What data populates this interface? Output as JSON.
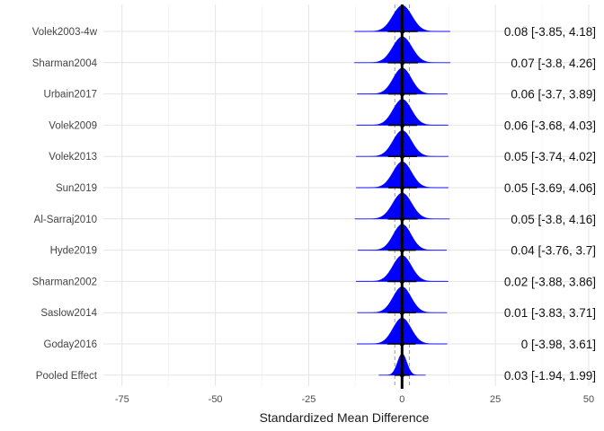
{
  "chart_data": {
    "type": "forest",
    "xlabel": "Standardized Mean Difference",
    "xlim": [
      -80,
      50
    ],
    "x_ticks": [
      -75,
      -50,
      -25,
      0,
      25,
      50
    ],
    "x_tick_labels": [
      "-75",
      "-50",
      "-25",
      "0",
      "25",
      "50"
    ],
    "grid": true,
    "density_color": "#0000ff",
    "reference_line_x": 0,
    "dashed_lines_x": [
      -1.94,
      1.99
    ],
    "studies": [
      {
        "name": "Volek2003-4w",
        "estimate": 0.08,
        "lower": -3.85,
        "upper": 4.18,
        "label": "0.08 [-3.85, 4.18]"
      },
      {
        "name": "Sharman2004",
        "estimate": 0.07,
        "lower": -3.8,
        "upper": 4.26,
        "label": "0.07 [-3.8, 4.26]"
      },
      {
        "name": "Urbain2017",
        "estimate": 0.06,
        "lower": -3.7,
        "upper": 3.89,
        "label": "0.06 [-3.7, 3.89]"
      },
      {
        "name": "Volek2009",
        "estimate": 0.06,
        "lower": -3.68,
        "upper": 4.03,
        "label": "0.06 [-3.68, 4.03]"
      },
      {
        "name": "Volek2013",
        "estimate": 0.05,
        "lower": -3.74,
        "upper": 4.02,
        "label": "0.05 [-3.74, 4.02]"
      },
      {
        "name": "Sun2019",
        "estimate": 0.05,
        "lower": -3.69,
        "upper": 4.06,
        "label": "0.05 [-3.69, 4.06]"
      },
      {
        "name": "Al-Sarraj2010",
        "estimate": 0.05,
        "lower": -3.8,
        "upper": 4.16,
        "label": "0.05 [-3.8, 4.16]"
      },
      {
        "name": "Hyde2019",
        "estimate": 0.04,
        "lower": -3.76,
        "upper": 3.7,
        "label": "0.04 [-3.76, 3.7]"
      },
      {
        "name": "Sharman2002",
        "estimate": 0.02,
        "lower": -3.88,
        "upper": 3.86,
        "label": "0.02 [-3.88, 3.86]"
      },
      {
        "name": "Saslow2014",
        "estimate": 0.01,
        "lower": -3.83,
        "upper": 3.71,
        "label": "0.01 [-3.83, 3.71]"
      },
      {
        "name": "Goday2016",
        "estimate": 0,
        "lower": -3.98,
        "upper": 3.61,
        "label": "0 [-3.98, 3.61]"
      },
      {
        "name": "Pooled Effect",
        "estimate": 0.03,
        "lower": -1.94,
        "upper": 1.99,
        "label": "0.03 [-1.94, 1.99]"
      }
    ]
  }
}
